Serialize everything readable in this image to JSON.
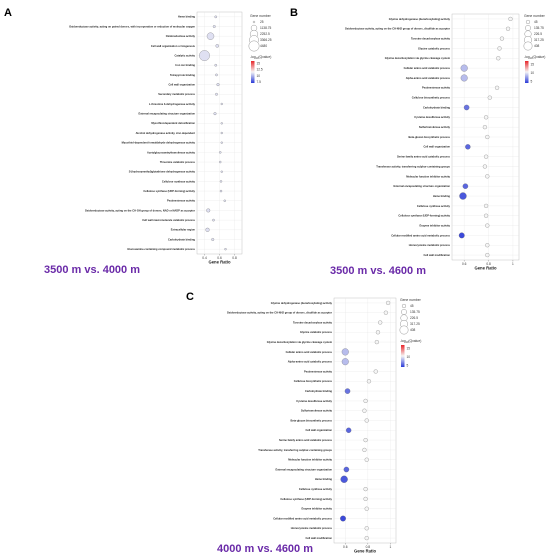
{
  "chart_data": [
    {
      "panel": "A",
      "type": "scatter",
      "caption": "3500 m vs. 4000 m",
      "xlabel": "Gene Ratio",
      "x_ticks": [
        "0.4",
        "0.6",
        "0.8"
      ],
      "x_tick_values": [
        0.4,
        0.6,
        0.8
      ],
      "xlim": [
        0.3,
        0.9
      ],
      "size_legend_title": "Gene number",
      "size_legend": [
        "25",
        "1138.75",
        "2252.5",
        "3366.25",
        "4480"
      ],
      "size_legend_values": [
        25,
        1138.75,
        2252.5,
        3366.25,
        4480
      ],
      "color_legend_ticks": [
        "15",
        "12.5",
        "10",
        "7.5"
      ],
      "color_legend_values": [
        15,
        12.5,
        10,
        7.5
      ],
      "color_range": [
        7,
        16
      ],
      "colors": {
        "high": "#e8262a",
        "mid": "#f5f5f5",
        "low": "#2b3bd8"
      },
      "points": [
        {
          "term": "Heme binding",
          "x": 0.55,
          "size": 60,
          "color": 11
        },
        {
          "term": "Oxidoreductase activity, acting on paired donors, with incorporation or reduction of molecular oxygen",
          "x": 0.53,
          "size": 90,
          "color": 11
        },
        {
          "term": "Oxidoreductase activity",
          "x": 0.48,
          "size": 1800,
          "color": 11
        },
        {
          "term": "Cell wall organization or biogenesis",
          "x": 0.57,
          "size": 200,
          "color": 11
        },
        {
          "term": "Catalytic activity",
          "x": 0.4,
          "size": 4480,
          "color": 11
        },
        {
          "term": "Iron ion binding",
          "x": 0.55,
          "size": 60,
          "color": 11
        },
        {
          "term": "Tetrapyrrole binding",
          "x": 0.56,
          "size": 60,
          "color": 11
        },
        {
          "term": "Cell wall organization",
          "x": 0.58,
          "size": 120,
          "color": 11
        },
        {
          "term": "Secondary metabolic process",
          "x": 0.56,
          "size": 80,
          "color": 11
        },
        {
          "term": "L-threonine 3-dehydrogenase activity",
          "x": 0.63,
          "size": 25,
          "color": 11
        },
        {
          "term": "External encapsulating structure organization",
          "x": 0.54,
          "size": 110,
          "color": 11
        },
        {
          "term": "Mycothiol-dependent detoxification",
          "x": 0.63,
          "size": 25,
          "color": 11
        },
        {
          "term": "Alcohol dehydrogenase activity, zinc-dependent",
          "x": 0.63,
          "size": 25,
          "color": 11
        },
        {
          "term": "Mycothiol-dependent formaldehyde dehydrogenase activity",
          "x": 0.63,
          "size": 25,
          "color": 11
        },
        {
          "term": "Acetylglucosaminyltransferase activity",
          "x": 0.61,
          "size": 40,
          "color": 11
        },
        {
          "term": "Threonine catabolic process",
          "x": 0.61,
          "size": 35,
          "color": 11
        },
        {
          "term": "S-(hydroxymethyl)glutathione dehydrogenase activity",
          "x": 0.63,
          "size": 25,
          "color": 11
        },
        {
          "term": "Cellulose synthase activity",
          "x": 0.62,
          "size": 40,
          "color": 11
        },
        {
          "term": "Cellulose synthase (UDP-forming) activity",
          "x": 0.62,
          "size": 40,
          "color": 11
        },
        {
          "term": "Pectinesterase activity",
          "x": 0.67,
          "size": 35,
          "color": 11
        },
        {
          "term": "Oxidoreductase activity, acting on the CH-OH group of donors, NAD or NADP as acceptor",
          "x": 0.45,
          "size": 300,
          "color": 11
        },
        {
          "term": "Cell wall macromolecule catabolic process",
          "x": 0.52,
          "size": 60,
          "color": 11
        },
        {
          "term": "Extracellular region",
          "x": 0.44,
          "size": 350,
          "color": 11
        },
        {
          "term": "Carbohydrate binding",
          "x": 0.51,
          "size": 100,
          "color": 11
        },
        {
          "term": "Glucosamine-containing compound metabolic process",
          "x": 0.68,
          "size": 35,
          "color": 11
        }
      ]
    },
    {
      "panel": "B",
      "type": "scatter",
      "caption": "3500 m vs. 4600 m",
      "xlabel": "Gene Ratio",
      "x_ticks": [
        "0.6",
        "0.8",
        "1"
      ],
      "x_tick_values": [
        0.6,
        0.8,
        1.0
      ],
      "xlim": [
        0.5,
        1.05
      ],
      "size_legend_title": "Gene number",
      "size_legend": [
        "45",
        "135.75",
        "226.5",
        "317.25",
        "408"
      ],
      "size_legend_values": [
        45,
        135.75,
        226.5,
        317.25,
        408
      ],
      "color_legend_ticks": [
        "15",
        "10",
        "5"
      ],
      "color_legend_values": [
        15,
        10,
        5
      ],
      "color_range": [
        4,
        17
      ],
      "colors": {
        "high": "#e8262a",
        "mid": "#f5f5f5",
        "low": "#2b3bd8"
      },
      "points": [
        {
          "term": "Glycine dehydrogenase (decarboxylating) activity",
          "x": 0.98,
          "size": 50,
          "color": 10.5
        },
        {
          "term": "Oxidoreductase activity, acting on the CH-NH2 group of donors, disulfide as acceptor",
          "x": 0.96,
          "size": 50,
          "color": 10.5
        },
        {
          "term": "Tyrosine decarboxylase activity",
          "x": 0.91,
          "size": 50,
          "color": 10.5
        },
        {
          "term": "Glycine catabolic process",
          "x": 0.89,
          "size": 50,
          "color": 10.5
        },
        {
          "term": "Glycine decarboxylation via glycine cleavage system",
          "x": 0.88,
          "size": 50,
          "color": 10.5
        },
        {
          "term": "Cellular amino acid catabolic process",
          "x": 0.6,
          "size": 240,
          "color": 8.5
        },
        {
          "term": "Alpha-amino acid catabolic process",
          "x": 0.6,
          "size": 230,
          "color": 8.5
        },
        {
          "term": "Pectinesterase activity",
          "x": 0.87,
          "size": 50,
          "color": 10.5
        },
        {
          "term": "Cellulose biosynthetic process",
          "x": 0.81,
          "size": 50,
          "color": 10.5
        },
        {
          "term": "Carbohydrate binding",
          "x": 0.62,
          "size": 120,
          "color": 6
        },
        {
          "term": "Cysteine desulfurase activity",
          "x": 0.78,
          "size": 50,
          "color": 10.5
        },
        {
          "term": "Sulfurtransferase activity",
          "x": 0.77,
          "size": 50,
          "color": 10.5
        },
        {
          "term": "Beta-glucan biosynthetic process",
          "x": 0.79,
          "size": 50,
          "color": 10.5
        },
        {
          "term": "Cell wall organization",
          "x": 0.63,
          "size": 110,
          "color": 5.5
        },
        {
          "term": "Serine family amino acid catabolic process",
          "x": 0.78,
          "size": 50,
          "color": 10.5
        },
        {
          "term": "Transferase activity, transferring sulphur-containing groups",
          "x": 0.77,
          "size": 50,
          "color": 10.5
        },
        {
          "term": "Molecular function inhibitor activity",
          "x": 0.79,
          "size": 50,
          "color": 10.5
        },
        {
          "term": "External encapsulating structure organization",
          "x": 0.61,
          "size": 120,
          "color": 5.5
        },
        {
          "term": "Heme binding",
          "x": 0.59,
          "size": 260,
          "color": 5
        },
        {
          "term": "Cellulose synthase activity",
          "x": 0.78,
          "size": 50,
          "color": 10.5
        },
        {
          "term": "Cellulose synthase (UDP-forming) activity",
          "x": 0.78,
          "size": 50,
          "color": 10.5
        },
        {
          "term": "Enzyme inhibitor activity",
          "x": 0.79,
          "size": 50,
          "color": 10.5
        },
        {
          "term": "Cellular modified amino acid metabolic process",
          "x": 0.58,
          "size": 140,
          "color": 4.5
        },
        {
          "term": "Homocysteine metabolic process",
          "x": 0.79,
          "size": 50,
          "color": 10.5
        },
        {
          "term": "Cell wall modification",
          "x": 0.79,
          "size": 50,
          "color": 10.5
        }
      ]
    },
    {
      "panel": "C",
      "type": "scatter",
      "caption": "4000 m vs. 4600 m",
      "xlabel": "Gene Ratio",
      "x_ticks": [
        "0.6",
        "0.8",
        "1"
      ],
      "x_tick_values": [
        0.6,
        0.8,
        1.0
      ],
      "xlim": [
        0.5,
        1.05
      ],
      "size_legend_title": "Gene number",
      "size_legend": [
        "45",
        "135.75",
        "226.5",
        "317.25",
        "408"
      ],
      "size_legend_values": [
        45,
        135.75,
        226.5,
        317.25,
        408
      ],
      "color_legend_ticks": [
        "15",
        "10",
        "5"
      ],
      "color_legend_values": [
        15,
        10,
        5
      ],
      "color_range": [
        4,
        17
      ],
      "colors": {
        "high": "#e8262a",
        "mid": "#f5f5f5",
        "low": "#2b3bd8"
      },
      "points": [
        {
          "term": "Glycine dehydrogenase (decarboxylating) activity",
          "x": 0.98,
          "size": 50,
          "color": 10.5
        },
        {
          "term": "Oxidoreductase activity, acting on the CH-NH2 group of donors, disulfide as acceptor",
          "x": 0.96,
          "size": 50,
          "color": 10.5
        },
        {
          "term": "Tyrosine decarboxylase activity",
          "x": 0.91,
          "size": 50,
          "color": 10.5
        },
        {
          "term": "Glycine catabolic process",
          "x": 0.89,
          "size": 50,
          "color": 10.5
        },
        {
          "term": "Glycine decarboxylation via glycine cleavage system",
          "x": 0.88,
          "size": 50,
          "color": 10.5
        },
        {
          "term": "Cellular amino acid catabolic process",
          "x": 0.6,
          "size": 240,
          "color": 8.5
        },
        {
          "term": "Alpha-amino acid catabolic process",
          "x": 0.6,
          "size": 230,
          "color": 8.5
        },
        {
          "term": "Pectinesterase activity",
          "x": 0.87,
          "size": 50,
          "color": 10.5
        },
        {
          "term": "Cellulose biosynthetic process",
          "x": 0.81,
          "size": 50,
          "color": 10.5
        },
        {
          "term": "Carbohydrate binding",
          "x": 0.62,
          "size": 120,
          "color": 6
        },
        {
          "term": "Cysteine desulfurase activity",
          "x": 0.78,
          "size": 50,
          "color": 10.5
        },
        {
          "term": "Sulfurtransferase activity",
          "x": 0.77,
          "size": 50,
          "color": 10.5
        },
        {
          "term": "Beta-glucan biosynthetic process",
          "x": 0.79,
          "size": 50,
          "color": 10.5
        },
        {
          "term": "Cell wall organization",
          "x": 0.63,
          "size": 110,
          "color": 5.5
        },
        {
          "term": "Serine family amino acid catabolic process",
          "x": 0.78,
          "size": 50,
          "color": 10.5
        },
        {
          "term": "Transferase activity, transferring sulphur-containing groups",
          "x": 0.77,
          "size": 50,
          "color": 10.5
        },
        {
          "term": "Molecular function inhibitor activity",
          "x": 0.79,
          "size": 50,
          "color": 10.5
        },
        {
          "term": "External encapsulating structure organization",
          "x": 0.61,
          "size": 120,
          "color": 5.5
        },
        {
          "term": "Heme binding",
          "x": 0.59,
          "size": 260,
          "color": 5
        },
        {
          "term": "Cellulose synthase activity",
          "x": 0.78,
          "size": 50,
          "color": 10.5
        },
        {
          "term": "Cellulose synthase (UDP-forming) activity",
          "x": 0.78,
          "size": 50,
          "color": 10.5
        },
        {
          "term": "Enzyme inhibitor activity",
          "x": 0.79,
          "size": 50,
          "color": 10.5
        },
        {
          "term": "Cellular modified amino acid metabolic process",
          "x": 0.58,
          "size": 140,
          "color": 4.5
        },
        {
          "term": "Homocysteine metabolic process",
          "x": 0.79,
          "size": 50,
          "color": 10.5
        },
        {
          "term": "Cell wall modification",
          "x": 0.79,
          "size": 50,
          "color": 10.5
        }
      ]
    }
  ]
}
